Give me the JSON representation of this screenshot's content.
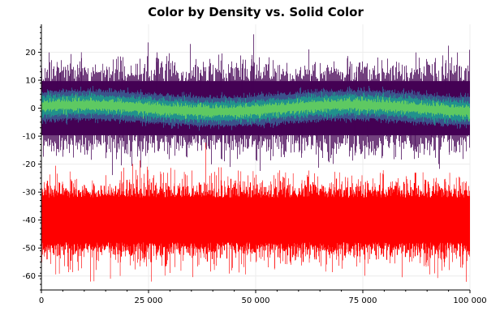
{
  "chart_data": {
    "type": "line",
    "title": "Color by Density vs. Solid Color",
    "xlabel": "",
    "ylabel": "",
    "xlim": [
      0,
      100000
    ],
    "ylim": [
      -65,
      30
    ],
    "x_ticks": [
      0,
      25000,
      50000,
      75000,
      100000
    ],
    "x_tick_labels": [
      "0",
      "25 000",
      "50 000",
      "75 000",
      "100 000"
    ],
    "y_ticks": [
      -60,
      -50,
      -40,
      -30,
      -20,
      -10,
      0,
      10,
      20
    ],
    "y_tick_labels": [
      "-60",
      "-50",
      "-40",
      "-30",
      "-20",
      "-10",
      "0",
      "10",
      "20"
    ],
    "grid": true,
    "legend": "none",
    "series": [
      {
        "style": "color-by-density",
        "n_points": 100000,
        "center": 0,
        "typical_range": [
          -12,
          12
        ],
        "extreme_range": [
          -17,
          25
        ],
        "density_colors": [
          "#440154",
          "#3b528b",
          "#21918c",
          "#5ec962"
        ]
      },
      {
        "style": "solid-color",
        "n_points": 100000,
        "center": -40,
        "typical_range": [
          -53,
          -27
        ],
        "extreme_range": [
          -62,
          -22
        ],
        "color": "#ff0000"
      }
    ]
  }
}
